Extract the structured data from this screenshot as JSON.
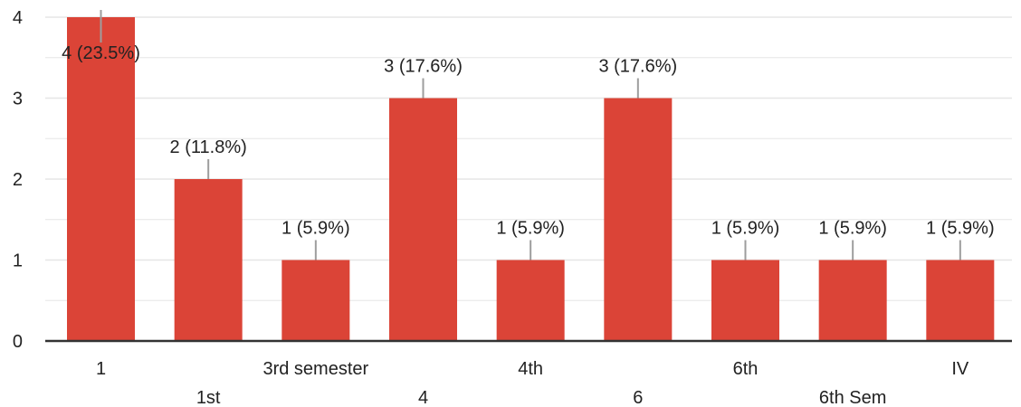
{
  "chart_data": {
    "type": "bar",
    "categories": [
      "1",
      "1st",
      "3rd semester",
      "4",
      "4th",
      "6",
      "6th",
      "6th Sem",
      "IV"
    ],
    "values": [
      4,
      2,
      1,
      3,
      1,
      3,
      1,
      1,
      1
    ],
    "data_labels": [
      "4 (23.5%)",
      "2 (11.8%)",
      "1 (5.9%)",
      "3 (17.6%)",
      "1 (5.9%)",
      "3 (17.6%)",
      "1 (5.9%)",
      "1 (5.9%)",
      "1 (5.9%)"
    ],
    "ylim": [
      0,
      4
    ],
    "yticks": [
      0,
      1,
      2,
      3,
      4
    ],
    "grid": true,
    "legend": "none",
    "colors": {
      "bar": "#db4437",
      "gridline": "#e6e6e6",
      "axis": "#333333",
      "leader": "#9e9e9e",
      "text": "#222222"
    }
  }
}
